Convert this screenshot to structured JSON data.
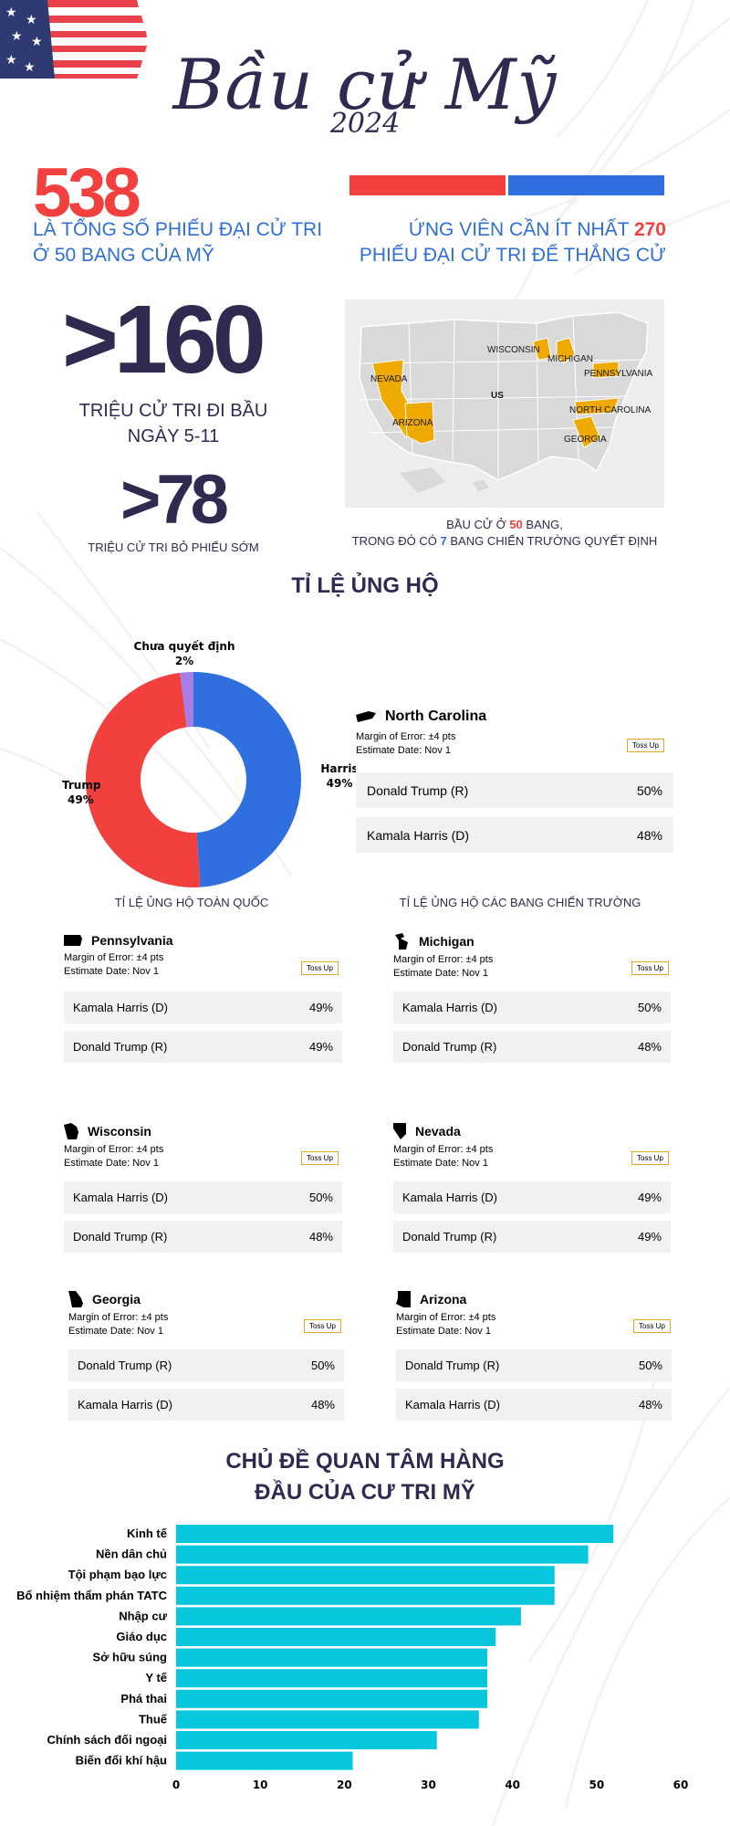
{
  "colors": {
    "navy": "#2f2b50",
    "red": "#f2403f",
    "blue": "#2f6fd3",
    "harris_blue": "#2f6fe0",
    "undecided": "#a67ee8",
    "state_gold": "#eeaa00",
    "bar_cyan": "#06c7dc"
  },
  "header": {
    "title": "Bầu cử Mỹ",
    "year": "2024"
  },
  "electoral": {
    "total": "538",
    "total_caption_line1": "LÀ TỔNG SỐ PHIẾU ĐẠI CỬ TRI",
    "total_caption_line2": "Ở 50 BANG CỦA MỸ",
    "need_prefix": "ỨNG VIÊN CẦN ÍT NHẤT ",
    "need_value": "270",
    "need_line2": "PHIẾU ĐẠI CỬ TRI ĐỂ THẮNG CỬ"
  },
  "turnout": {
    "voters": ">160",
    "voters_line1": "TRIỆU CỬ TRI ĐI BẦU",
    "voters_line2": "NGÀY 5-11",
    "early": ">78",
    "early_caption": "TRIỆU CỬ TRI BỎ PHIẾU SỚM"
  },
  "map": {
    "labels": [
      "WISCONSIN",
      "MICHIGAN",
      "PENNSYLVANIA",
      "NEVADA",
      "US",
      "NORTH CAROLINA",
      "ARIZONA",
      "GEORGIA"
    ],
    "caption_line1_prefix": "BẦU CỬ Ở ",
    "caption_line1_value": "50",
    "caption_line1_suffix": " BANG,",
    "caption_line2_prefix": "TRONG ĐÓ CÓ ",
    "caption_line2_value": "7",
    "caption_line2_suffix": " BANG CHIẾN TRƯỜNG QUYẾT ĐỊNH"
  },
  "support": {
    "title": "TỈ LỆ ỦNG HỘ",
    "national_caption": "TỈ LỆ ỦNG HỘ TOÀN QUỐC",
    "battleground_caption": "TỈ LỆ ỦNG HỘ CÁC BANG CHIẾN TRƯỜNG"
  },
  "polls": [
    {
      "state": "North Carolina",
      "moe": "Margin of Error: ±4 pts",
      "date": "Estimate Date: Nov 1",
      "badge": "Toss Up",
      "rows": [
        {
          "name": "Donald Trump (R)",
          "pct": "50%"
        },
        {
          "name": "Kamala Harris (D)",
          "pct": "48%"
        }
      ]
    },
    {
      "state": "Pennsylvania",
      "moe": "Margin of Error: ±4 pts",
      "date": "Estimate Date: Nov 1",
      "badge": "Toss Up",
      "rows": [
        {
          "name": "Kamala Harris (D)",
          "pct": "49%"
        },
        {
          "name": "Donald Trump (R)",
          "pct": "49%"
        }
      ]
    },
    {
      "state": "Michigan",
      "moe": "Margin of Error: ±4 pts",
      "date": "Estimate Date: Nov 1",
      "badge": "Toss Up",
      "rows": [
        {
          "name": "Kamala Harris (D)",
          "pct": "50%"
        },
        {
          "name": "Donald Trump (R)",
          "pct": "48%"
        }
      ]
    },
    {
      "state": "Wisconsin",
      "moe": "Margin of Error: ±4 pts",
      "date": "Estimate Date: Nov 1",
      "badge": "Toss Up",
      "rows": [
        {
          "name": "Kamala Harris (D)",
          "pct": "50%"
        },
        {
          "name": "Donald Trump (R)",
          "pct": "48%"
        }
      ]
    },
    {
      "state": "Nevada",
      "moe": "Margin of Error: ±4 pts",
      "date": "Estimate Date: Nov 1",
      "badge": "Toss Up",
      "rows": [
        {
          "name": "Kamala Harris (D)",
          "pct": "49%"
        },
        {
          "name": "Donald Trump (R)",
          "pct": "49%"
        }
      ]
    },
    {
      "state": "Georgia",
      "moe": "Margin of Error: ±4 pts",
      "date": "Estimate Date: Nov 1",
      "badge": "Toss Up",
      "rows": [
        {
          "name": "Donald Trump (R)",
          "pct": "50%"
        },
        {
          "name": "Kamala Harris (D)",
          "pct": "48%"
        }
      ]
    },
    {
      "state": "Arizona",
      "moe": "Margin of Error: ±4 pts",
      "date": "Estimate Date: Nov 1",
      "badge": "Toss Up",
      "rows": [
        {
          "name": "Donald Trump (R)",
          "pct": "50%"
        },
        {
          "name": "Kamala Harris (D)",
          "pct": "48%"
        }
      ]
    }
  ],
  "issues": {
    "title_line1": "CHỦ ĐỀ QUAN TÂM HÀNG",
    "title_line2": "ĐẦU CỦA CƯ TRI MỸ"
  },
  "chart_data": [
    {
      "type": "pie",
      "subtype": "donut",
      "labels": [
        "Harris",
        "Trump",
        "Chưa quyết định"
      ],
      "values": [
        49,
        49,
        2
      ],
      "value_labels": [
        "49%",
        "49%",
        "2%"
      ],
      "colors": [
        "#2f6fe0",
        "#f2403f",
        "#a67ee8"
      ]
    },
    {
      "type": "bar",
      "orientation": "horizontal",
      "categories": [
        "Kinh tế",
        "Nền dân chủ",
        "Tội phạm bạo lực",
        "Bổ nhiệm thẩm phán TATC",
        "Nhập cư",
        "Giáo dục",
        "Sở hữu súng",
        "Y tế",
        "Phá thai",
        "Thuế",
        "Chính sách đối ngoại",
        "Biến đổi khí hậu"
      ],
      "values": [
        52,
        49,
        45,
        45,
        41,
        38,
        37,
        37,
        37,
        36,
        31,
        21
      ],
      "xlim": [
        0,
        60
      ],
      "xticks": [
        "0",
        "10",
        "20",
        "30",
        "40",
        "50",
        "60"
      ],
      "color": "#06c7dc",
      "grid": false
    }
  ]
}
